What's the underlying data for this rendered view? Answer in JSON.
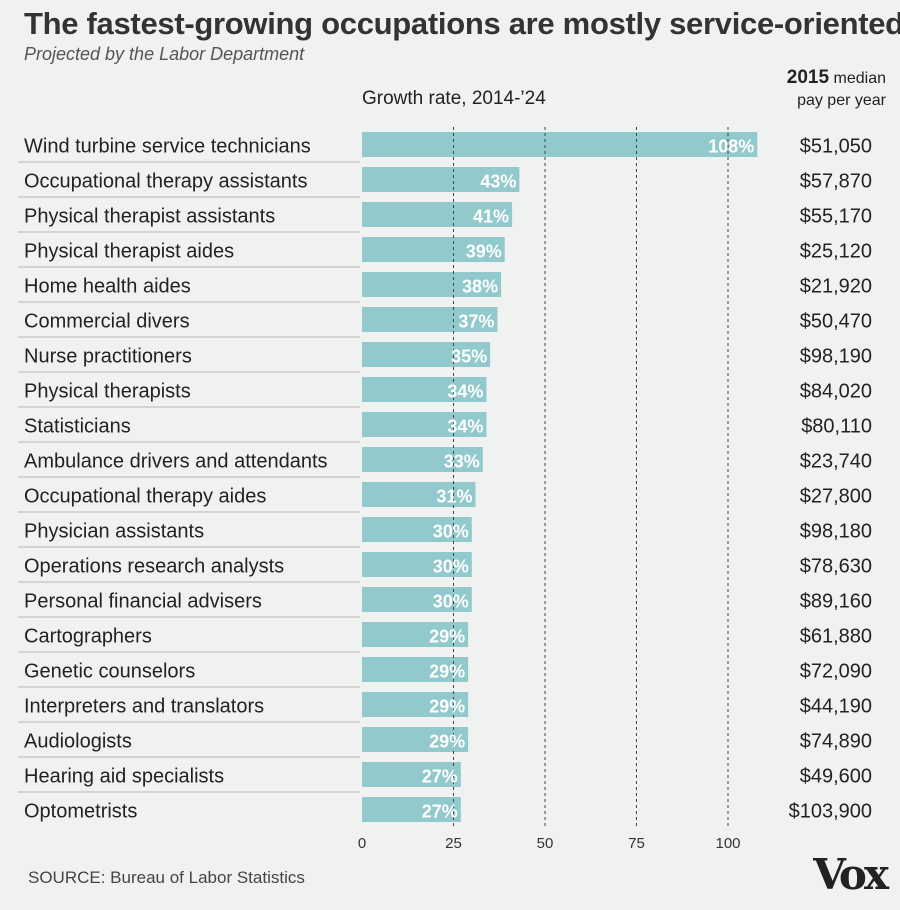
{
  "header": {
    "title": "The fastest-growing occupations are mostly service-oriented",
    "subtitle": "Projected by the Labor Department",
    "pay_year": "2015",
    "pay_line1": "median",
    "pay_line2": "pay per year"
  },
  "footer": {
    "source": "SOURCE: Bureau of Labor Statistics",
    "logo": "Vox"
  },
  "colors": {
    "bar": "#92c9cd",
    "background": "#f0f1f1",
    "grid": "#444444",
    "separator": "#b8b8b8"
  },
  "chart_data": {
    "type": "bar",
    "orientation": "horizontal",
    "title": "The fastest-growing occupations are mostly service-oriented",
    "subtitle": "Projected by the Labor Department",
    "xlabel": "Growth rate, 2014-’24",
    "xlim": [
      0,
      110
    ],
    "xticks": [
      0,
      25,
      50,
      75,
      100
    ],
    "grid": "dashed vertical at 25, 50, 75, 100",
    "categories": [
      "Wind turbine service technicians",
      "Occupational therapy assistants",
      "Physical therapist assistants",
      "Physical therapist aides",
      "Home health aides",
      "Commercial divers",
      "Nurse practitioners",
      "Physical therapists",
      "Statisticians",
      "Ambulance drivers and attendants",
      "Occupational therapy aides",
      "Physician assistants",
      "Operations research analysts",
      "Personal financial advisers",
      "Cartographers",
      "Genetic counselors",
      "Interpreters and translators",
      "Audiologists",
      "Hearing aid specialists",
      "Optometrists"
    ],
    "values": [
      108,
      43,
      41,
      39,
      38,
      37,
      35,
      34,
      34,
      33,
      31,
      30,
      30,
      30,
      29,
      29,
      29,
      29,
      27,
      27
    ],
    "value_labels": [
      "108%",
      "43%",
      "41%",
      "39%",
      "38%",
      "37%",
      "35%",
      "34%",
      "34%",
      "33%",
      "31%",
      "30%",
      "30%",
      "30%",
      "29%",
      "29%",
      "29%",
      "29%",
      "27%",
      "27%"
    ],
    "median_pay_2015": [
      "$51,050",
      "$57,870",
      "$55,170",
      "$25,120",
      "$21,920",
      "$50,470",
      "$98,190",
      "$84,020",
      "$80,110",
      "$23,740",
      "$27,800",
      "$98,180",
      "$78,630",
      "$89,160",
      "$61,880",
      "$72,090",
      "$44,190",
      "$74,890",
      "$49,600",
      "$103,900"
    ]
  }
}
